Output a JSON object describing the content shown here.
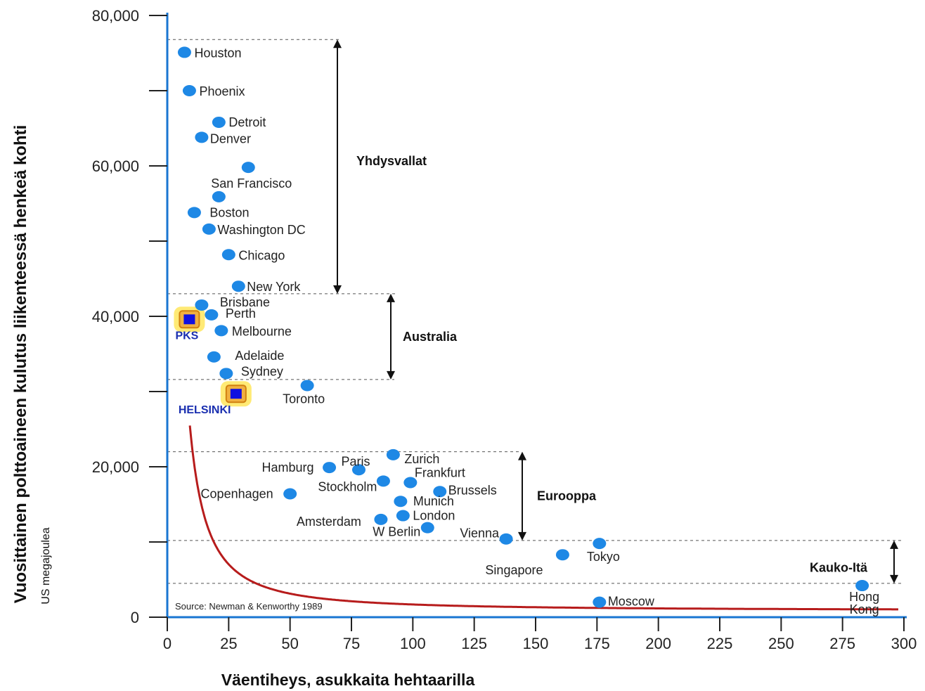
{
  "chart_data": {
    "type": "scatter",
    "xlabel": "Väentiheys, asukkaita hehtaarilla",
    "ylabel": "Vuosittainen polttoaineen kulutus liikenteessä henkeä kohti",
    "ylabel_unit": "US megajoulea",
    "source": "Source: Newman & Kenworthy 1989",
    "xlim": [
      0,
      300
    ],
    "ylim": [
      0,
      80000
    ],
    "x_ticks": [
      "0",
      "25",
      "50",
      "75",
      "100",
      "125",
      "150",
      "175",
      "200",
      "225",
      "250",
      "275",
      "300"
    ],
    "y_ticks": [
      "0",
      "20,000",
      "40,000",
      "60,000",
      "80,000"
    ],
    "y_tick_values": [
      0,
      20000,
      40000,
      60000,
      80000
    ],
    "colors": {
      "points": "#1e88e5",
      "curve": "#b71c1c",
      "axis": "#1976d2",
      "highlight": "#1a2fb0"
    },
    "points": [
      {
        "name": "Houston",
        "x": 7,
        "y": 75100
      },
      {
        "name": "Phoenix",
        "x": 9,
        "y": 70000
      },
      {
        "name": "Detroit",
        "x": 21,
        "y": 65800
      },
      {
        "name": "Denver",
        "x": 14,
        "y": 63800
      },
      {
        "name": "San Francisco",
        "x": 33,
        "y": 59800
      },
      {
        "name": "Boston",
        "x": 11,
        "y": 53800
      },
      {
        "name": "",
        "x": 21,
        "y": 55900
      },
      {
        "name": "Washington DC",
        "x": 17,
        "y": 51600
      },
      {
        "name": "Chicago",
        "x": 25,
        "y": 48200
      },
      {
        "name": "New York",
        "x": 29,
        "y": 44000
      },
      {
        "name": "Brisbane",
        "x": 14,
        "y": 41500
      },
      {
        "name": "Perth",
        "x": 18,
        "y": 40200
      },
      {
        "name": "Melbourne",
        "x": 22,
        "y": 38100
      },
      {
        "name": "Adelaide",
        "x": 19,
        "y": 34600
      },
      {
        "name": "Sydney",
        "x": 24,
        "y": 32400
      },
      {
        "name": "Toronto",
        "x": 57,
        "y": 30800
      },
      {
        "name": "Hamburg",
        "x": 66,
        "y": 19900
      },
      {
        "name": "Paris",
        "x": 78,
        "y": 19600
      },
      {
        "name": "Zurich",
        "x": 92,
        "y": 21600
      },
      {
        "name": "Frankfurt",
        "x": 99,
        "y": 17900
      },
      {
        "name": "Stockholm",
        "x": 88,
        "y": 18100
      },
      {
        "name": "Copenhagen",
        "x": 50,
        "y": 16400
      },
      {
        "name": "Brussels",
        "x": 111,
        "y": 16700
      },
      {
        "name": "Munich",
        "x": 95,
        "y": 15400
      },
      {
        "name": "London",
        "x": 96,
        "y": 13500
      },
      {
        "name": "Amsterdam",
        "x": 87,
        "y": 13000
      },
      {
        "name": "W Berlin",
        "x": 106,
        "y": 11900
      },
      {
        "name": "Vienna",
        "x": 138,
        "y": 10400
      },
      {
        "name": "Tokyo",
        "x": 176,
        "y": 9800
      },
      {
        "name": "Singapore",
        "x": 161,
        "y": 8300
      },
      {
        "name": "Moscow",
        "x": 176,
        "y": 2000
      },
      {
        "name": "Hong Kong",
        "x": 283,
        "y": 4200
      }
    ],
    "highlights": [
      {
        "name": "PKS",
        "x": 9,
        "y": 39600
      },
      {
        "name": "HELSINKI",
        "x": 28,
        "y": 29700
      }
    ],
    "regions": [
      {
        "name": "Yhdysvallat",
        "y_top": 76800,
        "y_bottom": 43000
      },
      {
        "name": "Australia",
        "y_top": 43000,
        "y_bottom": 31600
      },
      {
        "name": "Eurooppa",
        "y_top": 22000,
        "y_bottom": 10200
      },
      {
        "name": "Kauko-Itä",
        "y_top": 10200,
        "y_bottom": 4500
      }
    ],
    "curve": "hyperbolic trend line"
  }
}
